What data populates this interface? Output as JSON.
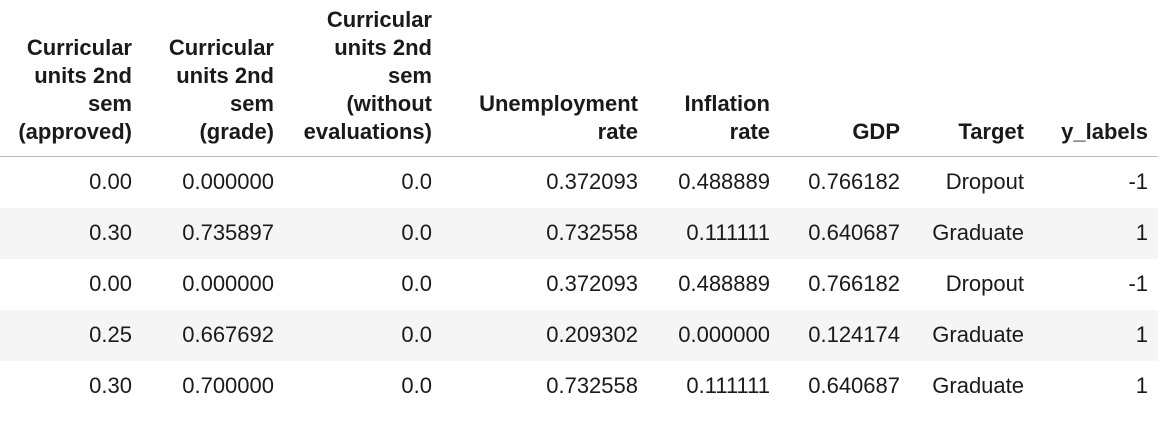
{
  "table": {
    "columns": [
      "Curricular\nunits 2nd\nsem\n(approved)",
      "Curricular\nunits 2nd\nsem\n(grade)",
      "Curricular\nunits 2nd\nsem\n(without\nevaluations)",
      "Unemployment\nrate",
      "Inflation\nrate",
      "GDP",
      "Target",
      "y_labels"
    ],
    "rows": [
      [
        "0.00",
        "0.000000",
        "0.0",
        "0.372093",
        "0.488889",
        "0.766182",
        "Dropout",
        "-1"
      ],
      [
        "0.30",
        "0.735897",
        "0.0",
        "0.732558",
        "0.111111",
        "0.640687",
        "Graduate",
        "1"
      ],
      [
        "0.00",
        "0.000000",
        "0.0",
        "0.372093",
        "0.488889",
        "0.766182",
        "Dropout",
        "-1"
      ],
      [
        "0.25",
        "0.667692",
        "0.0",
        "0.209302",
        "0.000000",
        "0.124174",
        "Graduate",
        "1"
      ],
      [
        "0.30",
        "0.700000",
        "0.0",
        "0.732558",
        "0.111111",
        "0.640687",
        "Graduate",
        "1"
      ]
    ]
  }
}
